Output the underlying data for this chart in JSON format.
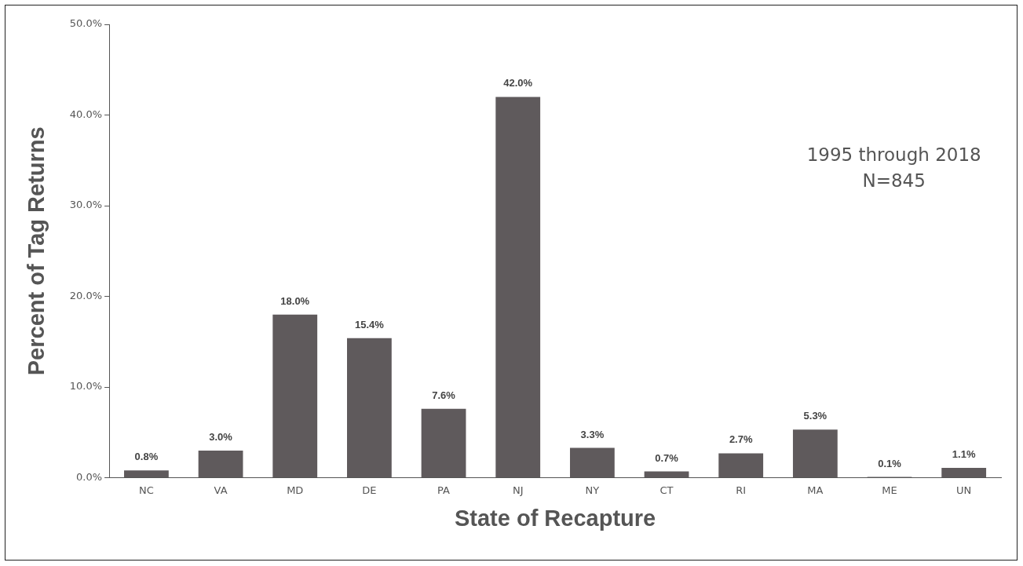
{
  "chart_data": {
    "type": "bar",
    "xlabel": "State of Recapture",
    "ylabel": "Percent of Tag Returns",
    "categories": [
      "NC",
      "VA",
      "MD",
      "DE",
      "PA",
      "NJ",
      "NY",
      "CT",
      "RI",
      "MA",
      "ME",
      "UN"
    ],
    "values": [
      0.8,
      3.0,
      18.0,
      15.4,
      7.6,
      42.0,
      3.3,
      0.7,
      2.7,
      5.3,
      0.1,
      1.1
    ],
    "value_labels": [
      "0.8%",
      "3.0%",
      "18.0%",
      "15.4%",
      "7.6%",
      "42.0%",
      "3.3%",
      "0.7%",
      "2.7%",
      "5.3%",
      "0.1%",
      "1.1%"
    ],
    "color": "#5f5a5c",
    "ylim": [
      0,
      50
    ],
    "yticks": [
      {
        "value": 0,
        "label": "0.0%"
      },
      {
        "value": 10,
        "label": "10.0%"
      },
      {
        "value": 20,
        "label": "20.0%"
      },
      {
        "value": 30,
        "label": "30.0%"
      },
      {
        "value": 40,
        "label": "40.0%"
      },
      {
        "value": 50,
        "label": "50.0%"
      }
    ],
    "annotations": [
      "1995 through 2018",
      "N=845"
    ],
    "grid": false,
    "legend": false
  }
}
